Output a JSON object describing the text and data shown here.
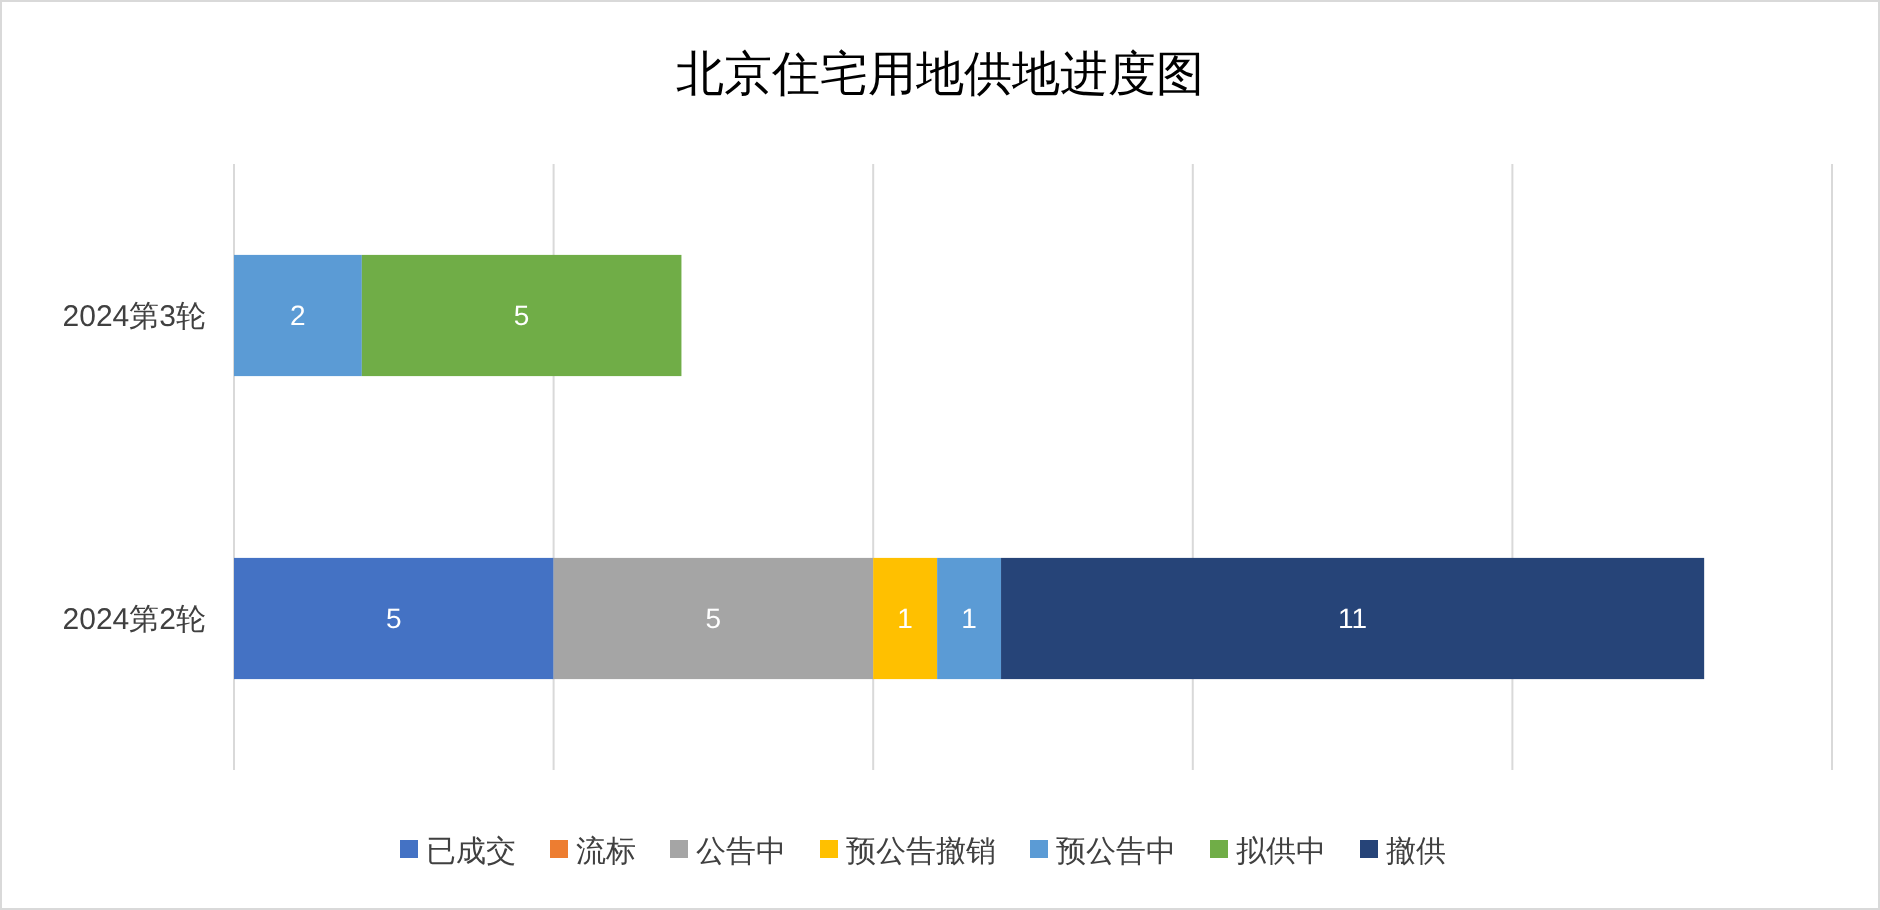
{
  "chart_data": {
    "type": "bar",
    "orientation": "horizontal",
    "stacked": true,
    "title": "北京住宅用地供地进度图",
    "categories": [
      "2024第3轮",
      "2024第2轮"
    ],
    "series": [
      {
        "name": "已成交",
        "color": "#4472c4",
        "values": [
          null,
          5
        ]
      },
      {
        "name": "流标",
        "color": "#ed7d31",
        "values": [
          null,
          null
        ]
      },
      {
        "name": "公告中",
        "color": "#a5a5a5",
        "values": [
          null,
          5
        ]
      },
      {
        "name": "预公告撤销",
        "color": "#ffc000",
        "values": [
          null,
          1
        ]
      },
      {
        "name": "预公告中",
        "color": "#5b9bd5",
        "values": [
          2,
          1
        ]
      },
      {
        "name": "拟供中",
        "color": "#70ad47",
        "values": [
          5,
          null
        ]
      },
      {
        "name": "撤供",
        "color": "#264478",
        "values": [
          null,
          11
        ]
      }
    ],
    "xlim": [
      0,
      25
    ],
    "xticks": [
      {
        "value": 0,
        "label": null
      },
      {
        "value": 5,
        "label": null
      },
      {
        "value": 10,
        "label": null
      },
      {
        "value": 15,
        "label": null
      },
      {
        "value": 20,
        "label": null
      },
      {
        "value": 25,
        "label": null
      }
    ],
    "tick_labels": "y",
    "grid": "x",
    "legend": "bottom",
    "data_labels": true
  }
}
